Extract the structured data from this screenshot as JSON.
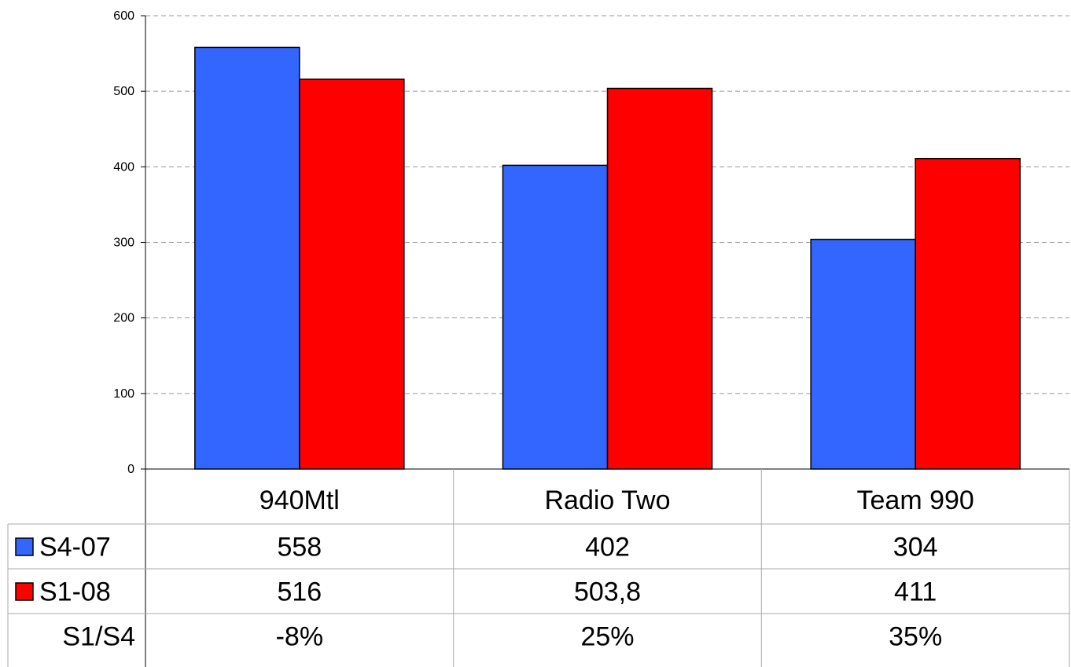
{
  "chart_data": {
    "type": "bar",
    "categories": [
      "940Mtl",
      "Radio Two",
      "Team 990"
    ],
    "series": [
      {
        "name": "S4-07",
        "values": [
          558,
          402,
          304
        ],
        "color": "#3366ff",
        "labels": [
          "558",
          "402",
          "304"
        ]
      },
      {
        "name": "S1-08",
        "values": [
          516,
          503.8,
          411
        ],
        "color": "#ff0000",
        "labels": [
          "516",
          "503,8",
          "411"
        ]
      }
    ],
    "extra_rows": [
      {
        "name": "S1/S4",
        "labels": [
          "-8%",
          "25%",
          "35%"
        ]
      }
    ],
    "yticks": [
      "0",
      "100",
      "200",
      "300",
      "400",
      "500",
      "600"
    ],
    "ylim": [
      0,
      600
    ],
    "grid": true,
    "legend": "data table",
    "title": "",
    "xlabel": "",
    "ylabel": ""
  }
}
